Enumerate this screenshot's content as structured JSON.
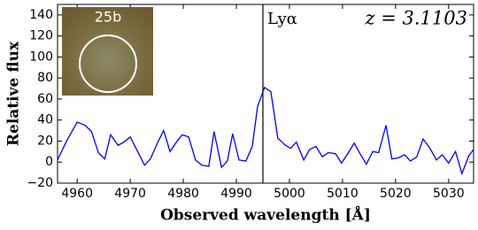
{
  "chart_data": {
    "type": "line",
    "xlabel": "Observed wavelength [Å]",
    "ylabel": "Relative flux",
    "xlim": [
      4956.3,
      5034.7
    ],
    "ylim": [
      -20,
      150
    ],
    "xticks": [
      4960,
      4970,
      4980,
      4990,
      5000,
      5010,
      5020,
      5030
    ],
    "yticks": [
      {
        "value": -20,
        "label": "−20"
      },
      0,
      20,
      40,
      60,
      80,
      100,
      120,
      140
    ],
    "line_label": "Lyα",
    "line_x": 4995,
    "redshift_label": "z = 3.1103",
    "inset_label": "25b",
    "series": [
      {
        "color": "#0000ff",
        "x": [
          4956.3,
          4958,
          4960,
          4961.5,
          4962.7,
          4964,
          4965.2,
          4966.3,
          4967.7,
          4968.8,
          4970,
          4971.3,
          4972.7,
          4973.8,
          4975.2,
          4976.3,
          4977.5,
          4978.7,
          4979.8,
          4981,
          4982.3,
          4983.5,
          4984.8,
          4985.8,
          4987.2,
          4988.3,
          4989.3,
          4990.5,
          4991.8,
          4993,
          4994,
          4995.3,
          4996.5,
          4997.8,
          4999,
          5000.2,
          5001.3,
          5002.7,
          5003.8,
          5005,
          5006.2,
          5007.3,
          5008.7,
          5009.8,
          5011,
          5012.2,
          5013.3,
          5014.5,
          5015.7,
          5016.8,
          5018.2,
          5019.3,
          5020.5,
          5021.7,
          5022.8,
          5024,
          5025.2,
          5026.5,
          5027.7,
          5028.8,
          5030,
          5031.3,
          5032.5,
          5033.8,
          5034.7
        ],
        "values": [
          2,
          20,
          38,
          35,
          29,
          9,
          3,
          26,
          16,
          19,
          24,
          11,
          -3,
          3,
          19,
          30,
          10,
          19,
          26,
          24,
          2,
          -3,
          -4,
          29,
          -5,
          1,
          27,
          2,
          1,
          15,
          53,
          71,
          67,
          23,
          17,
          13,
          19,
          2,
          12,
          15,
          5,
          9,
          8,
          -1,
          8,
          18,
          8,
          -2,
          10,
          9,
          35,
          3,
          4,
          7,
          1,
          5,
          22,
          13,
          2,
          7,
          -1,
          10,
          -11,
          6,
          12
        ]
      }
    ]
  }
}
